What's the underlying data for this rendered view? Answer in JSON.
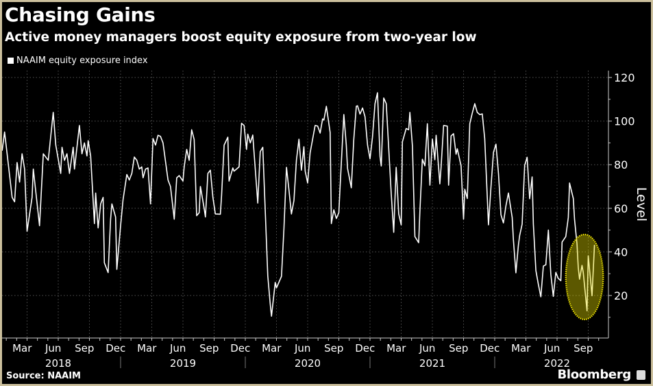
{
  "chart_data": {
    "type": "line",
    "title": "Chasing Gains",
    "subtitle": "Active money managers boost equity exposure from two-year low",
    "legend": [
      "NAAIM equity exposure index"
    ],
    "legend_placement": "top-left",
    "xlabel": "",
    "ylabel": "Level",
    "ylim": [
      0,
      120
    ],
    "yticks": [
      20,
      40,
      60,
      80,
      100,
      120
    ],
    "xlim": [
      2018.03,
      2022.87
    ],
    "x_month_labels": [
      {
        "label": "Mar",
        "t": 2018.21
      },
      {
        "label": "Jun",
        "t": 2018.46
      },
      {
        "label": "Sep",
        "t": 2018.71
      },
      {
        "label": "Dec",
        "t": 2018.96
      },
      {
        "label": "Mar",
        "t": 2019.21
      },
      {
        "label": "Jun",
        "t": 2019.46
      },
      {
        "label": "Sep",
        "t": 2019.71
      },
      {
        "label": "Dec",
        "t": 2019.96
      },
      {
        "label": "Mar",
        "t": 2020.21
      },
      {
        "label": "Jun",
        "t": 2020.46
      },
      {
        "label": "Sep",
        "t": 2020.71
      },
      {
        "label": "Dec",
        "t": 2020.96
      },
      {
        "label": "Mar",
        "t": 2021.21
      },
      {
        "label": "Jun",
        "t": 2021.46
      },
      {
        "label": "Sep",
        "t": 2021.71
      },
      {
        "label": "Dec",
        "t": 2021.96
      },
      {
        "label": "Mar",
        "t": 2022.21
      },
      {
        "label": "Jun",
        "t": 2022.46
      },
      {
        "label": "Sep",
        "t": 2022.71
      }
    ],
    "x_year_labels": [
      "2018",
      "2019",
      "2020",
      "2021",
      "2022"
    ],
    "grid": true,
    "annotation": "highlighted ellipse around Aug-Oct 2022 lows",
    "series": [
      {
        "name": "NAAIM equity exposure index",
        "color": "#ffffff",
        "x": [
          2018.05,
          2018.07,
          2018.1,
          2018.13,
          2018.15,
          2018.17,
          2018.19,
          2018.21,
          2018.23,
          2018.25,
          2018.29,
          2018.3,
          2018.35,
          2018.38,
          2018.42,
          2018.46,
          2018.48,
          2018.52,
          2018.53,
          2018.55,
          2018.57,
          2018.59,
          2018.62,
          2018.63,
          2018.67,
          2018.69,
          2018.71,
          2018.73,
          2018.74,
          2018.76,
          2018.79,
          2018.8,
          2018.82,
          2018.84,
          2018.86,
          2018.87,
          2018.9,
          2018.92,
          2018.93,
          2018.96,
          2018.97,
          2019.0,
          2019.02,
          2019.05,
          2019.07,
          2019.09,
          2019.11,
          2019.13,
          2019.15,
          2019.17,
          2019.18,
          2019.2,
          2019.22,
          2019.24,
          2019.26,
          2019.28,
          2019.3,
          2019.32,
          2019.34,
          2019.38,
          2019.4,
          2019.43,
          2019.45,
          2019.47,
          2019.5,
          2019.51,
          2019.53,
          2019.55,
          2019.57,
          2019.59,
          2019.61,
          2019.63,
          2019.64,
          2019.67,
          2019.68,
          2019.7,
          2019.72,
          2019.74,
          2019.76,
          2019.8,
          2019.81,
          2019.83,
          2019.86,
          2019.87,
          2019.9,
          2019.91,
          2019.95,
          2019.97,
          2019.99,
          2020.01,
          2020.02,
          2020.04,
          2020.06,
          2020.1,
          2020.12,
          2020.14,
          2020.18,
          2020.2,
          2020.21,
          2020.24,
          2020.25,
          2020.29,
          2020.31,
          2020.33,
          2020.35,
          2020.37,
          2020.39,
          2020.41,
          2020.43,
          2020.45,
          2020.47,
          2020.48,
          2020.5,
          2020.52,
          2020.56,
          2020.58,
          2020.6,
          2020.62,
          2020.63,
          2020.65,
          2020.68,
          2020.69,
          2020.71,
          2020.73,
          2020.75,
          2020.76,
          2020.79,
          2020.81,
          2020.82,
          2020.85,
          2020.87,
          2020.89,
          2020.9,
          2020.92,
          2020.94,
          2020.96,
          2020.98,
          2021.0,
          2021.02,
          2021.04,
          2021.06,
          2021.08,
          2021.09,
          2021.11,
          2021.13,
          2021.17,
          2021.19,
          2021.21,
          2021.23,
          2021.25,
          2021.26,
          2021.29,
          2021.31,
          2021.32,
          2021.34,
          2021.36,
          2021.39,
          2021.4,
          2021.42,
          2021.44,
          2021.46,
          2021.48,
          2021.5,
          2021.52,
          2021.53,
          2021.56,
          2021.57,
          2021.59,
          2021.62,
          2021.63,
          2021.65,
          2021.67,
          2021.69,
          2021.7,
          2021.73,
          2021.75,
          2021.76,
          2021.78,
          2021.8,
          2021.82,
          2021.84,
          2021.86,
          2021.88,
          2021.9,
          2021.92,
          2021.95,
          2021.97,
          2021.99,
          2022.01,
          2022.03,
          2022.05,
          2022.07,
          2022.09,
          2022.11,
          2022.14,
          2022.15,
          2022.17,
          2022.19,
          2022.2,
          2022.22,
          2022.24,
          2022.26,
          2022.28,
          2022.3,
          2022.31,
          2022.33,
          2022.35,
          2022.37,
          2022.39,
          2022.41,
          2022.43,
          2022.45,
          2022.47,
          2022.49,
          2022.51,
          2022.53,
          2022.54,
          2022.57,
          2022.59,
          2022.6,
          2022.63,
          2022.64,
          2022.66,
          2022.67,
          2022.68,
          2022.7,
          2022.71,
          2022.74,
          2022.75,
          2022.78,
          2022.8
        ],
        "y": [
          86.4,
          95,
          80,
          65,
          63,
          81,
          72,
          85,
          78,
          49.5,
          65,
          78,
          52,
          85,
          82,
          104,
          89,
          76,
          88,
          82,
          85,
          76,
          88,
          78,
          98,
          85,
          90,
          84,
          91,
          84,
          53,
          67,
          51,
          62,
          65,
          35,
          30.5,
          55,
          62,
          56,
          32,
          52,
          64,
          75.5,
          73,
          76,
          83.5,
          82,
          78,
          79,
          74,
          78,
          78.5,
          62,
          92,
          89,
          93.5,
          93,
          90,
          73,
          70,
          55,
          74,
          75,
          72.5,
          79,
          87,
          82,
          96,
          91.5,
          56.6,
          58,
          70,
          60,
          56,
          76,
          77.5,
          65,
          57.4,
          57.3,
          66,
          89,
          92.6,
          72.5,
          78.5,
          77,
          79,
          99,
          98,
          87,
          94,
          90,
          93.6,
          62.4,
          86,
          88,
          29,
          16,
          10.5,
          26,
          23.5,
          28.8,
          50.7,
          78.8,
          68.4,
          57.4,
          63.6,
          82,
          91.7,
          77.5,
          88.2,
          77,
          71.6,
          85.4,
          98,
          97.7,
          94.5,
          101,
          100.5,
          106.8,
          94.8,
          53,
          59.3,
          55.3,
          58,
          69.6,
          103,
          89,
          78.3,
          69.4,
          91.5,
          106.8,
          107,
          103.2,
          106,
          102,
          89,
          82.7,
          92.6,
          108,
          113,
          83.7,
          79.4,
          110.6,
          108,
          67,
          49,
          78.8,
          57.4,
          52.4,
          90.5,
          96.6,
          96,
          104,
          88.6,
          47,
          44.2,
          58.6,
          82.5,
          79.5,
          98.8,
          70.6,
          91.8,
          82.3,
          93.5,
          71.2,
          78.8,
          98,
          97.7,
          70.6,
          93.2,
          94.2,
          84.8,
          87.3,
          79.4,
          55,
          68.7,
          64.5,
          98.8,
          103.6,
          108,
          104,
          103,
          103.3,
          92,
          52.4,
          69.7,
          85.7,
          89.4,
          75.9,
          57,
          53.3,
          61.2,
          67,
          55.8,
          45.4,
          30.4,
          43.2,
          47.5,
          52.7,
          79.7,
          83.4,
          64.4,
          74.4,
          52.7,
          31.4,
          25.1,
          19.4,
          33.5,
          34.1,
          50,
          29.7,
          19.6,
          30.6,
          27.8,
          26.8,
          44.5,
          47,
          55.8,
          71.6,
          64.5,
          54.9,
          43.6,
          32.9,
          27.5,
          33.8,
          30.6,
          13,
          38.2,
          19.9,
          43.2
        ]
      }
    ],
    "highlight": {
      "t_center": 2022.72,
      "y_center": 28.5,
      "t_radius": 0.15,
      "y_radius": 19.5,
      "fill": "#e6dc00",
      "stroke": "#f2e600"
    }
  },
  "footer": {
    "source": "Source: NAAIM",
    "brand": "Bloomberg"
  },
  "colors": {
    "background": "#000000",
    "border": "#cbbf9c",
    "grid": "#555555",
    "text": "#ffffff"
  }
}
